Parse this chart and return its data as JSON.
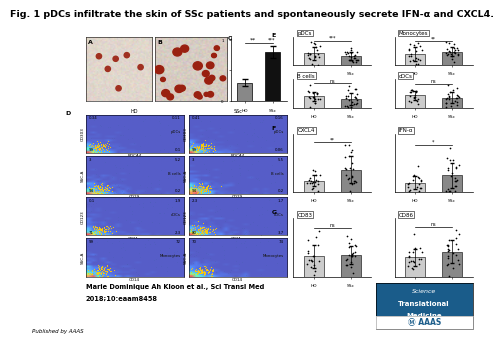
{
  "title": "Fig. 1 pDCs infiltrate the skin of SSc patients and spontaneously secrete IFN-α and CXCL4.",
  "title_fontsize": 6.8,
  "title_fontweight": "bold",
  "author_line1": "Marie Dominique Ah Kloon et al., Sci Transl Med",
  "author_line2": "2018;10:eaam8458",
  "published_by": "Published by AAAS",
  "background_color": "#ffffff",
  "bar_chart_C": {
    "HD": 0.3,
    "SSc": 0.8
  },
  "E_panels": [
    {
      "title": "pDCs",
      "sig": "***",
      "hd_mean": 0.55,
      "hd_std": 0.25,
      "ssc_mean": 0.38,
      "ssc_std": 0.22
    },
    {
      "title": "Monocytes",
      "sig": "**",
      "hd_mean": 0.42,
      "hd_std": 0.2,
      "ssc_mean": 0.55,
      "ssc_std": 0.25
    },
    {
      "title": "B cells",
      "sig": "ns",
      "hd_mean": 0.5,
      "hd_std": 0.28,
      "ssc_mean": 0.42,
      "ssc_std": 0.24
    },
    {
      "title": "cDCs",
      "sig": "ns",
      "hd_mean": 0.48,
      "hd_std": 0.22,
      "ssc_mean": 0.4,
      "ssc_std": 0.2
    }
  ],
  "F_panels": [
    {
      "title": "CXCL4",
      "sig": "**",
      "hd_mean": 0.25,
      "hd_std": 0.12,
      "ssc_mean": 0.55,
      "ssc_std": 0.3
    },
    {
      "title": "IFN-α",
      "sig": "*",
      "hd_mean": 0.15,
      "hd_std": 0.1,
      "ssc_mean": 0.38,
      "ssc_std": 0.28
    }
  ],
  "G_panels": [
    {
      "title": "CD83",
      "sig": "ns",
      "hd_mean": 0.35,
      "hd_std": 0.2,
      "ssc_mean": 0.4,
      "ssc_std": 0.22
    },
    {
      "title": "CD86",
      "sig": "ns",
      "hd_mean": 0.5,
      "hd_std": 0.22,
      "ssc_mean": 0.52,
      "ssc_std": 0.24
    }
  ],
  "flow_rows": [
    {
      "ylabel": "CD303",
      "xlabel": "BDCA4",
      "label": "pDCs",
      "hd_nums": [
        "0.34",
        "0.11",
        "99",
        "0.1"
      ],
      "ssc_nums": [
        "0.41",
        "0.16",
        "99",
        "0.06"
      ]
    },
    {
      "ylabel": "SSC-A",
      "xlabel": "CD19",
      "label": "B cells",
      "hd_nums": [
        "3",
        "5.2",
        "94",
        "0.2"
      ],
      "ssc_nums": [
        "3",
        "5.5",
        "94",
        "0.2"
      ]
    },
    {
      "ylabel": "CD123",
      "xlabel": "CD11c",
      "label": "cDCs",
      "hd_nums": [
        "0.1",
        "1.9",
        "71",
        "2.3"
      ],
      "ssc_nums": [
        "2.3",
        "1.7",
        "80",
        "3.7"
      ]
    },
    {
      "ylabel": "SSC-A",
      "xlabel": "CD14",
      "label": "Monocytes",
      "hd_nums": [
        "99",
        "72",
        "",
        ""
      ],
      "ssc_nums": [
        "70",
        "74",
        "",
        ""
      ]
    }
  ],
  "journal_bg_color": "#1a5c8a",
  "journal_bar_color": "#ffffff"
}
